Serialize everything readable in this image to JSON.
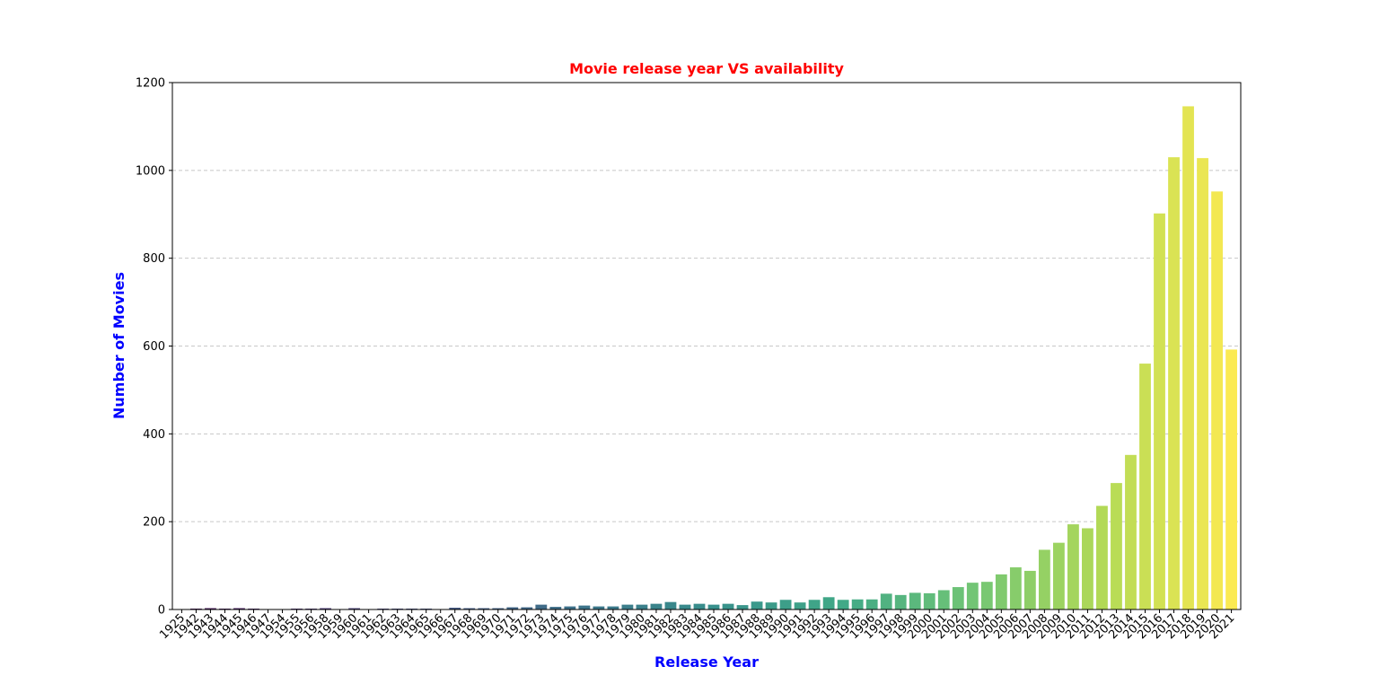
{
  "chart_data": {
    "type": "bar",
    "title": "Movie release year VS availability",
    "xlabel": "Release Year",
    "ylabel": "Number of Movies",
    "ylim": [
      0,
      1200
    ],
    "yticks": [
      "0",
      "200",
      "400",
      "600",
      "800",
      "1000",
      "1200"
    ],
    "grid": "horizontal-dashed",
    "categories": [
      "1925",
      "1942",
      "1943",
      "1944",
      "1945",
      "1946",
      "1947",
      "1954",
      "1955",
      "1956",
      "1958",
      "1959",
      "1960",
      "1961",
      "1962",
      "1963",
      "1964",
      "1965",
      "1966",
      "1967",
      "1968",
      "1969",
      "1970",
      "1971",
      "1972",
      "1973",
      "1974",
      "1975",
      "1976",
      "1977",
      "1978",
      "1979",
      "1980",
      "1981",
      "1982",
      "1983",
      "1984",
      "1985",
      "1986",
      "1987",
      "1988",
      "1989",
      "1990",
      "1991",
      "1992",
      "1993",
      "1994",
      "1995",
      "1996",
      "1997",
      "1998",
      "1999",
      "2000",
      "2001",
      "2002",
      "2003",
      "2004",
      "2005",
      "2006",
      "2007",
      "2008",
      "2009",
      "2010",
      "2011",
      "2012",
      "2013",
      "2014",
      "2015",
      "2016",
      "2017",
      "2018",
      "2019",
      "2020",
      "2021"
    ],
    "values": [
      1,
      2,
      3,
      2,
      3,
      2,
      1,
      1,
      2,
      2,
      3,
      1,
      3,
      1,
      2,
      2,
      2,
      2,
      1,
      4,
      3,
      3,
      3,
      5,
      5,
      11,
      6,
      7,
      9,
      7,
      7,
      11,
      11,
      13,
      17,
      11,
      13,
      11,
      13,
      10,
      18,
      16,
      22,
      16,
      22,
      28,
      22,
      23,
      23,
      36,
      33,
      38,
      37,
      44,
      51,
      61,
      63,
      80,
      96,
      88,
      136,
      152,
      194,
      185,
      236,
      288,
      352,
      560,
      902,
      1030,
      1146,
      1028,
      952,
      592
    ],
    "colors": {
      "title": "#ff0000",
      "axis_labels": "#0000ff",
      "grid": "#c8c8c8",
      "palette": "viridis"
    }
  }
}
